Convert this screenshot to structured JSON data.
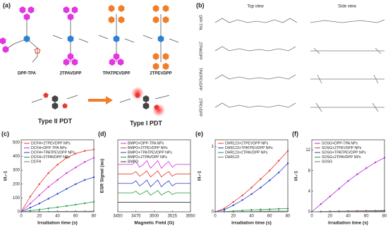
{
  "panel_a": {
    "label": "(a)",
    "molecules": [
      "DPP-TPA",
      "2TPAVDPP",
      "TPATPEVDPP",
      "2TPEVDPP"
    ],
    "type_ii": "Type II PDT",
    "type_i": "Type I PDT"
  },
  "panel_b": {
    "label": "(b)",
    "top_view": "Top view",
    "side_view": "Side view",
    "rows": [
      "DPP-TPA",
      "2TPAVDPP",
      "TPATPEVDPP",
      "2TPEVDPP"
    ]
  },
  "chart_data": [
    {
      "panel_label": "(c)",
      "type": "line",
      "markers": true,
      "legend": "upper left",
      "ylabel": "I/I₀-1",
      "xlabel": "Irradiation time (s)",
      "x": [
        0,
        10,
        20,
        30,
        40,
        50,
        60,
        70,
        80
      ],
      "xlim": [
        0,
        80
      ],
      "xticks": [
        0,
        20,
        40,
        60,
        80
      ],
      "ylim": [
        0,
        520
      ],
      "yticks": [
        0,
        100,
        200,
        300,
        400,
        500
      ],
      "series": [
        {
          "name": "DCFH+2TPEVDPP NPs",
          "color": "#e8392f",
          "values": [
            0,
            110,
            200,
            280,
            340,
            390,
            420,
            440,
            450
          ]
        },
        {
          "name": "DCFH+DPP-TPA NPs",
          "color": "#d62bd6",
          "values": [
            0,
            60,
            120,
            180,
            230,
            280,
            320,
            360,
            390
          ]
        },
        {
          "name": "DCFH+TPATPEVDPP NPs",
          "color": "#2a3fd0",
          "values": [
            0,
            30,
            60,
            95,
            130,
            165,
            200,
            230,
            250
          ]
        },
        {
          "name": "DCFH+2TPAVDPP NPs",
          "color": "#1f9a3a",
          "values": [
            0,
            8,
            16,
            25,
            33,
            42,
            52,
            62,
            72
          ]
        },
        {
          "name": "DCFH",
          "color": "#777777",
          "values": [
            0,
            1,
            2,
            2,
            3,
            3,
            4,
            4,
            5
          ]
        }
      ]
    },
    {
      "panel_label": "(d)",
      "type": "line",
      "markers": false,
      "legend": "upper left",
      "ylabel": "ESR Signal (au)",
      "xlabel": "Magnetic Field (G)",
      "x": [
        3450,
        3455,
        3460,
        3465,
        3470,
        3475,
        3480,
        3485,
        3490,
        3495,
        3500,
        3505,
        3510,
        3515,
        3520,
        3525,
        3530,
        3535,
        3540,
        3545,
        3550
      ],
      "xlim": [
        3450,
        3550
      ],
      "xticks": [
        3450,
        3475,
        3500,
        3525,
        3550
      ],
      "ylim": [
        0,
        7.6
      ],
      "series": [
        {
          "name": "BMPO+DPP-TPA NPs",
          "color": "#d62bd6",
          "values": [
            5,
            5,
            5,
            5,
            5,
            5.3,
            4.7,
            5,
            5.4,
            4.6,
            5,
            5.4,
            4.6,
            5,
            5.3,
            4.7,
            5,
            5,
            5,
            5,
            5
          ]
        },
        {
          "name": "BMPO+2TPEVDPP NPs",
          "color": "#e8392f",
          "values": [
            4,
            4,
            4,
            4,
            4,
            4.24,
            3.76,
            4,
            4.32,
            3.68,
            4,
            4.32,
            3.68,
            4,
            4.24,
            3.76,
            4,
            4,
            4,
            4,
            4
          ]
        },
        {
          "name": "BMPO+TPATPEVDPP NPs",
          "color": "#2a3fd0",
          "values": [
            3,
            3,
            3,
            3,
            3,
            3.27,
            2.73,
            3,
            3.36,
            2.64,
            3,
            3.36,
            2.64,
            3,
            3.27,
            2.73,
            3,
            3,
            3,
            3,
            3
          ]
        },
        {
          "name": "BMPO+2TPAVDPP NPs",
          "color": "#1f9a3a",
          "values": [
            2,
            2,
            2,
            2,
            2,
            2.18,
            1.82,
            2,
            2.24,
            1.76,
            2,
            2.24,
            1.76,
            2,
            2.18,
            1.82,
            2,
            2,
            2,
            2,
            2
          ]
        },
        {
          "name": "BMPO",
          "color": "#333333",
          "values": [
            1,
            1,
            1,
            1,
            1,
            1,
            1,
            1,
            1,
            1,
            1,
            1,
            1,
            1,
            1,
            1,
            1,
            1,
            1,
            1,
            1
          ]
        }
      ]
    },
    {
      "panel_label": "(e)",
      "type": "line",
      "markers": true,
      "legend": "upper left",
      "ylabel": "I/I₀-1",
      "xlabel": "Irradiation time (s)",
      "x": [
        0,
        10,
        20,
        30,
        40,
        50,
        60,
        70,
        80
      ],
      "xlim": [
        0,
        80
      ],
      "xticks": [
        0,
        20,
        40,
        60,
        80
      ],
      "ylim": [
        0,
        1.1
      ],
      "yticks": [
        0,
        1
      ],
      "series": [
        {
          "name": "DHR123+2TPEVDPP NPs",
          "color": "#e8392f",
          "values": [
            0,
            0.05,
            0.15,
            0.25,
            0.37,
            0.5,
            0.63,
            0.78,
            0.93
          ]
        },
        {
          "name": "DHR123+TPATPEVDPP NPs",
          "color": "#2a3fd0",
          "values": [
            0,
            0.03,
            0.1,
            0.18,
            0.27,
            0.37,
            0.48,
            0.6,
            0.74
          ]
        },
        {
          "name": "DHR123+2TPAVDPP NPs",
          "color": "#1f9a3a",
          "values": [
            0,
            0.005,
            0.01,
            0.02,
            0.03,
            0.035,
            0.04,
            0.045,
            0.05
          ]
        },
        {
          "name": "DHR123",
          "color": "#777777",
          "values": [
            0,
            0,
            0,
            0.005,
            0.005,
            0.01,
            0.01,
            0.01,
            0.01
          ]
        }
      ]
    },
    {
      "panel_label": "(f)",
      "type": "line",
      "markers": true,
      "legend": "upper left",
      "ylabel": "I/I₀-1",
      "xlabel": "Irradiation time (s)",
      "x": [
        0,
        10,
        20,
        30,
        40,
        50,
        60,
        70,
        80
      ],
      "xlim": [
        0,
        80
      ],
      "xticks": [
        0,
        20,
        40,
        60,
        80
      ],
      "ylim": [
        0,
        14
      ],
      "yticks": [
        0,
        4,
        8,
        12
      ],
      "series": [
        {
          "name": "SOSG+DPP-TPA NPs",
          "color": "#b02bd6",
          "values": [
            0,
            1.5,
            3,
            4.5,
            6,
            7.3,
            8.5,
            9.6,
            10.5
          ]
        },
        {
          "name": "SOSG+2TPEVDPP NPs",
          "color": "#e8392f",
          "values": [
            0,
            0.05,
            0.1,
            0.12,
            0.15,
            0.18,
            0.2,
            0.22,
            0.25
          ]
        },
        {
          "name": "SOSG+TPATPEVDPP NPs",
          "color": "#2a3fd0",
          "values": [
            0,
            0.03,
            0.06,
            0.08,
            0.1,
            0.12,
            0.14,
            0.16,
            0.18
          ]
        },
        {
          "name": "SOSG+2TPAVDPP NPs",
          "color": "#1f9a3a",
          "values": [
            0,
            0.02,
            0.04,
            0.05,
            0.06,
            0.08,
            0.09,
            0.1,
            0.11
          ]
        },
        {
          "name": "SOSG",
          "color": "#777777",
          "values": [
            0,
            0,
            0.01,
            0.01,
            0.02,
            0.02,
            0.03,
            0.03,
            0.04
          ]
        }
      ]
    }
  ]
}
